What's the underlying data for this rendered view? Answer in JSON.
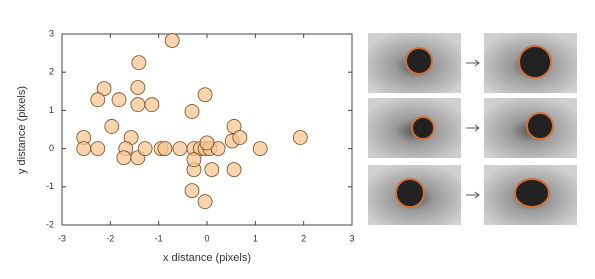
{
  "chart_data": {
    "type": "scatter",
    "xlabel": "x distance (pixels)",
    "ylabel": "y distance (pixels)",
    "x": [
      -0.72,
      -2.13,
      -2.26,
      -1.82,
      -1.41,
      -1.43,
      -1.43,
      -1.14,
      -0.04,
      -0.31,
      -1.97,
      -1.57,
      -2.55,
      -2.55,
      -2.26,
      -1.68,
      -1.72,
      -1.43,
      -1.28,
      -0.95,
      -0.87,
      -0.56,
      -0.27,
      -0.14,
      -0.04,
      0.06,
      0.23,
      0.0,
      0.52,
      0.56,
      0.68,
      1.1,
      1.93,
      0.1,
      0.56,
      -0.27,
      -0.31,
      -0.04,
      -0.27
    ],
    "values": [
      2.83,
      1.57,
      1.28,
      1.28,
      2.25,
      1.6,
      1.15,
      1.15,
      1.41,
      0.97,
      0.58,
      0.29,
      0.29,
      0.0,
      0.0,
      0.0,
      -0.24,
      -0.24,
      0.0,
      0.0,
      0.0,
      0.0,
      0.0,
      0.0,
      0.0,
      0.0,
      0.0,
      0.15,
      0.2,
      0.58,
      0.29,
      0.0,
      0.29,
      -0.55,
      -0.55,
      -0.55,
      -1.1,
      -1.39,
      -0.29
    ],
    "color": "#f6c594",
    "edgecolor": "#7a4a20",
    "xlim": [
      -3,
      3
    ],
    "ylim": [
      -2,
      3
    ],
    "xticks": [
      -3,
      -2,
      -1,
      0,
      1,
      2,
      3
    ],
    "yticks": [
      -2,
      -1,
      0,
      1,
      2,
      3
    ]
  }
}
